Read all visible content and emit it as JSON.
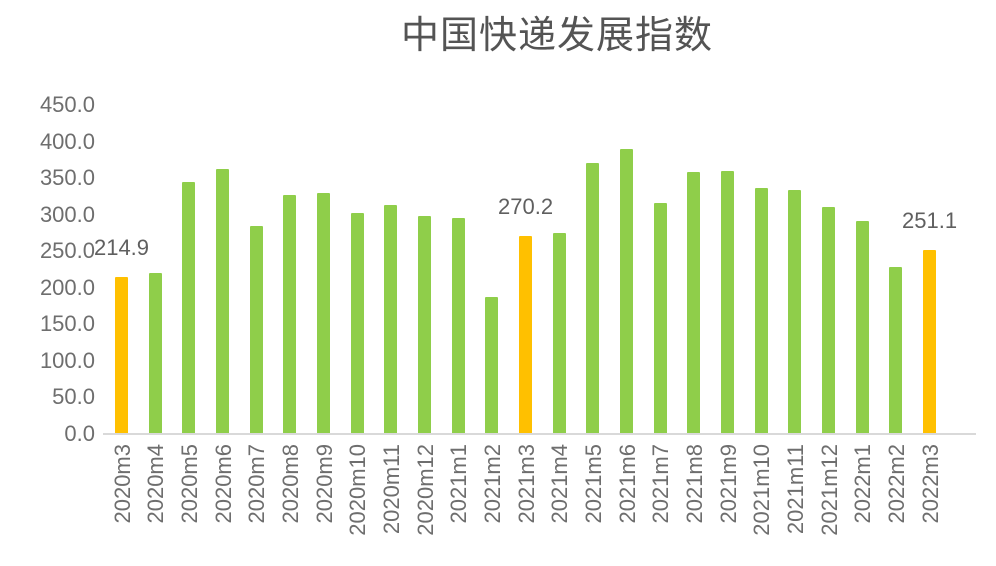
{
  "chart_data": {
    "type": "bar",
    "title": "中国快递发展指数",
    "categories": [
      "2020m3",
      "2020m4",
      "2020m5",
      "2020m6",
      "2020m7",
      "2020m8",
      "2020m9",
      "2020m10",
      "2020m11",
      "2020m12",
      "2021m1",
      "2021m2",
      "2021m3",
      "2021m4",
      "2021m5",
      "2021m6",
      "2021m7",
      "2021m8",
      "2021m9",
      "2021m10",
      "2021m11",
      "2021m12",
      "2022m1",
      "2022m2",
      "2022m3"
    ],
    "values": [
      214.9,
      220.0,
      345.0,
      363.0,
      284.0,
      327.0,
      330.0,
      302.0,
      313.0,
      298.0,
      296.0,
      188.0,
      270.2,
      275.0,
      371.0,
      390.0,
      316.0,
      358.0,
      360.0,
      337.0,
      334.0,
      310.0,
      292.0,
      228.0,
      251.1
    ],
    "highlight_indices": [
      0,
      12,
      24
    ],
    "data_labels": [
      {
        "index": 0,
        "text": "214.9"
      },
      {
        "index": 12,
        "text": "270.2"
      },
      {
        "index": 24,
        "text": "251.1"
      }
    ],
    "y_axis": {
      "min": 0,
      "max": 450,
      "tick_step": 50,
      "tick_labels": [
        "450.0",
        "400.0",
        "350.0",
        "300.0",
        "250.0",
        "200.0",
        "150.0",
        "100.0",
        "50.0",
        "0.0"
      ]
    },
    "colors": {
      "bar_default": "#8FCE4A",
      "bar_highlight": "#FFC000",
      "axis_line": "#D9D9D9",
      "tick_text": "#6E6E6E",
      "label_text": "#5F5F5F",
      "title_text": "#545454"
    },
    "legend": "none",
    "grid": "off",
    "xlabel": "",
    "ylabel": ""
  }
}
